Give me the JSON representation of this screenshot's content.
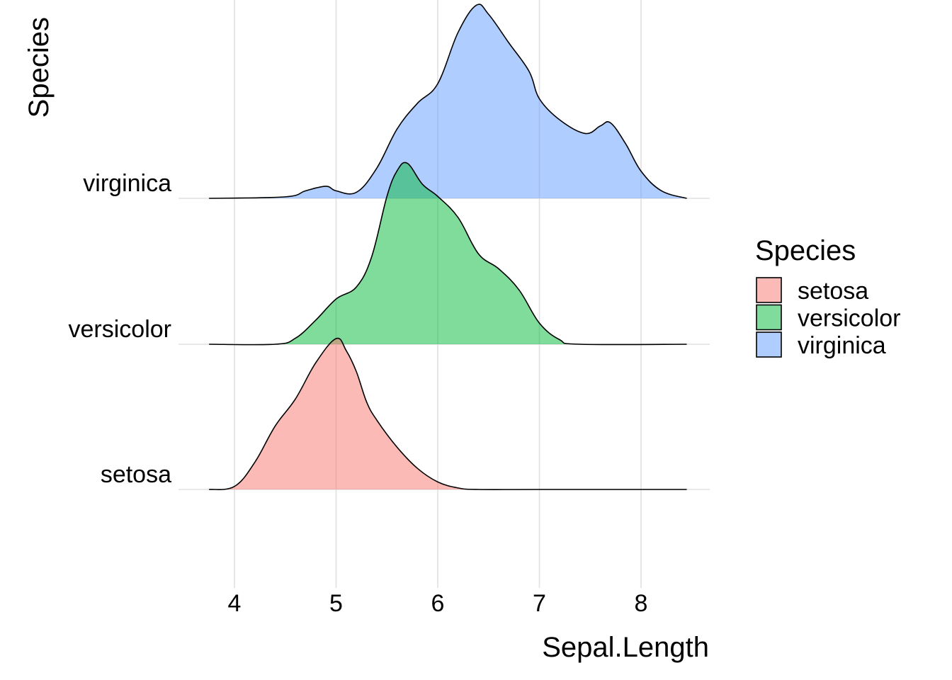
{
  "chart_data": {
    "type": "area",
    "subtype": "ridgeline-density",
    "xlabel": "Sepal.Length",
    "ylabel": "Species",
    "xlim": [
      3.75,
      8.45
    ],
    "xticks": [
      4,
      5,
      6,
      7,
      8
    ],
    "categories": [
      "setosa",
      "versicolor",
      "virginica"
    ],
    "legend": {
      "title": "Species",
      "position": "right"
    },
    "grid": true,
    "series": [
      {
        "name": "setosa",
        "color": "#F8766D",
        "points": [
          [
            3.75,
            0.0
          ],
          [
            4.0,
            0.02
          ],
          [
            4.2,
            0.18
          ],
          [
            4.4,
            0.42
          ],
          [
            4.6,
            0.6
          ],
          [
            4.8,
            0.84
          ],
          [
            5.0,
            1.0
          ],
          [
            5.1,
            0.92
          ],
          [
            5.2,
            0.78
          ],
          [
            5.3,
            0.58
          ],
          [
            5.4,
            0.46
          ],
          [
            5.6,
            0.28
          ],
          [
            5.8,
            0.14
          ],
          [
            6.0,
            0.05
          ],
          [
            6.2,
            0.01
          ],
          [
            6.4,
            0.0
          ],
          [
            7.0,
            0.0
          ],
          [
            8.45,
            0.0
          ]
        ]
      },
      {
        "name": "versicolor",
        "color": "#00BA38",
        "points": [
          [
            3.75,
            0.0
          ],
          [
            4.4,
            0.0
          ],
          [
            4.6,
            0.04
          ],
          [
            4.8,
            0.16
          ],
          [
            5.0,
            0.3
          ],
          [
            5.2,
            0.38
          ],
          [
            5.35,
            0.58
          ],
          [
            5.5,
            0.98
          ],
          [
            5.6,
            1.15
          ],
          [
            5.7,
            1.2
          ],
          [
            5.85,
            1.06
          ],
          [
            6.0,
            0.98
          ],
          [
            6.2,
            0.84
          ],
          [
            6.4,
            0.6
          ],
          [
            6.6,
            0.5
          ],
          [
            6.8,
            0.36
          ],
          [
            7.0,
            0.14
          ],
          [
            7.2,
            0.03
          ],
          [
            7.4,
            0.0
          ],
          [
            8.45,
            0.0
          ]
        ]
      },
      {
        "name": "virginica",
        "color": "#619CFF",
        "points": [
          [
            3.75,
            0.0
          ],
          [
            4.5,
            0.01
          ],
          [
            4.7,
            0.05
          ],
          [
            4.9,
            0.08
          ],
          [
            5.0,
            0.05
          ],
          [
            5.2,
            0.04
          ],
          [
            5.4,
            0.2
          ],
          [
            5.6,
            0.46
          ],
          [
            5.8,
            0.63
          ],
          [
            6.0,
            0.76
          ],
          [
            6.2,
            1.1
          ],
          [
            6.38,
            1.28
          ],
          [
            6.5,
            1.22
          ],
          [
            6.7,
            1.03
          ],
          [
            6.9,
            0.84
          ],
          [
            7.0,
            0.66
          ],
          [
            7.2,
            0.52
          ],
          [
            7.45,
            0.43
          ],
          [
            7.6,
            0.48
          ],
          [
            7.7,
            0.5
          ],
          [
            7.85,
            0.36
          ],
          [
            8.0,
            0.18
          ],
          [
            8.2,
            0.05
          ],
          [
            8.45,
            0.0
          ]
        ]
      }
    ]
  }
}
